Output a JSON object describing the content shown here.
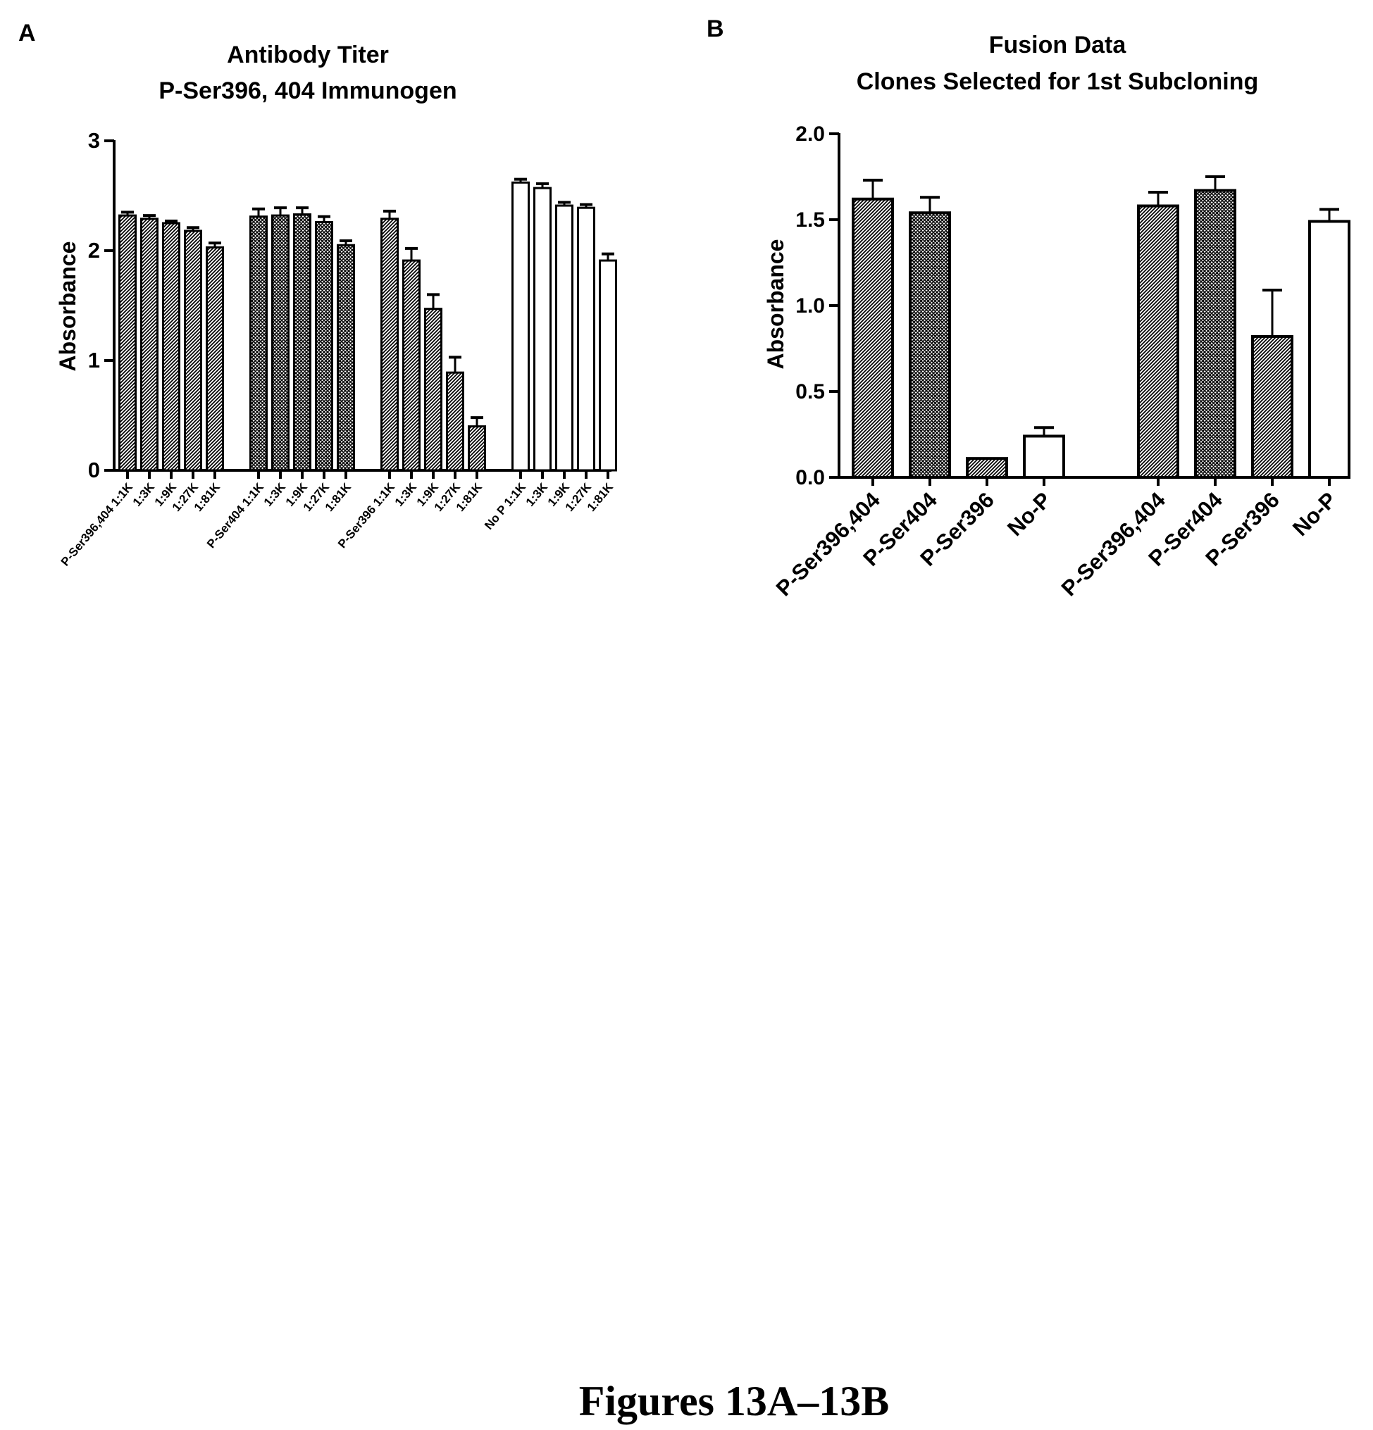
{
  "figure_caption": "Figures 13A–13B",
  "chart_data": [
    {
      "panel_label": "A",
      "type": "bar",
      "title": "Antibody Titer",
      "subtitle": "P-Ser396, 404 Immunogen",
      "ylabel": "Absorbance",
      "xlabel": "",
      "ylim": [
        0,
        3
      ],
      "yticks": [
        "0",
        "1",
        "2",
        "3"
      ],
      "grid": false,
      "groups": [
        {
          "name": "P-Ser396,404",
          "fill": "hatch",
          "labels": [
            "P-Ser396,404 1:1K",
            "1:3K",
            "1:9K",
            "1:27K",
            "1:81K"
          ],
          "values": [
            2.32,
            2.29,
            2.25,
            2.18,
            2.03
          ],
          "errors": [
            0.03,
            0.03,
            0.02,
            0.03,
            0.04
          ]
        },
        {
          "name": "P-Ser404",
          "fill": "crosshatch",
          "labels": [
            "P-Ser404 1:1K",
            "1:3K",
            "1:9K",
            "1:27K",
            "1:81K"
          ],
          "values": [
            2.31,
            2.32,
            2.33,
            2.26,
            2.05
          ],
          "errors": [
            0.07,
            0.07,
            0.06,
            0.05,
            0.04
          ]
        },
        {
          "name": "P-Ser396",
          "fill": "hatch",
          "labels": [
            "P-Ser396 1:1K",
            "1:3K",
            "1:9K",
            "1:27K",
            "1:81K"
          ],
          "values": [
            2.29,
            1.91,
            1.47,
            0.89,
            0.4
          ],
          "errors": [
            0.07,
            0.11,
            0.13,
            0.14,
            0.08
          ]
        },
        {
          "name": "No P",
          "fill": "white",
          "labels": [
            "No P 1:1K",
            "1:3K",
            "1:9K",
            "1:27K",
            "1:81K"
          ],
          "values": [
            2.62,
            2.57,
            2.41,
            2.39,
            1.91
          ],
          "errors": [
            0.03,
            0.04,
            0.03,
            0.03,
            0.06
          ]
        }
      ]
    },
    {
      "panel_label": "B",
      "type": "bar",
      "title": "Fusion Data",
      "subtitle": "Clones Selected for 1st Subcloning",
      "ylabel": "Absorbance",
      "xlabel": "",
      "ylim": [
        0,
        2.0
      ],
      "yticks": [
        "0.0",
        "0.5",
        "1.0",
        "1.5",
        "2.0"
      ],
      "grid": false,
      "groups": [
        {
          "labels": [
            "P-Ser396,404",
            "P-Ser404",
            "P-Ser396",
            "No-P"
          ],
          "fills": [
            "hatch",
            "crosshatch",
            "hatch",
            "white"
          ],
          "values": [
            1.62,
            1.54,
            0.11,
            0.24
          ],
          "errors": [
            0.11,
            0.09,
            0.0,
            0.05
          ]
        },
        {
          "labels": [
            "P-Ser396,404",
            "P-Ser404",
            "P-Ser396",
            "No-P"
          ],
          "fills": [
            "hatch",
            "crosshatch",
            "hatch",
            "white"
          ],
          "values": [
            1.58,
            1.67,
            0.82,
            1.49
          ],
          "errors": [
            0.08,
            0.08,
            0.27,
            0.07
          ]
        }
      ]
    }
  ]
}
